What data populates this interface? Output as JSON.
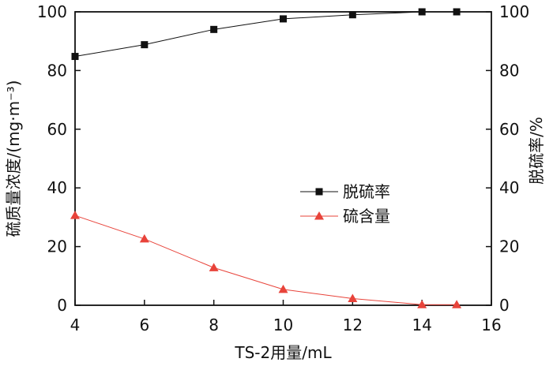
{
  "chart_data": {
    "type": "line",
    "xlabel": "TS-2用量/mL",
    "ylabel_left": "硫质量浓度/(mg·m⁻³)",
    "ylabel_right": "脱硫率/%",
    "xlim": [
      4,
      16
    ],
    "ylim_left": [
      0,
      100
    ],
    "ylim_right": [
      0,
      100
    ],
    "x_ticks": [
      "4",
      "6",
      "8",
      "10",
      "12",
      "14",
      "16"
    ],
    "y_ticks": [
      "0",
      "20",
      "40",
      "60",
      "80",
      "100"
    ],
    "grid": false,
    "legend_position": "center-right",
    "series": [
      {
        "name": "脱硫率",
        "axis": "right",
        "marker": "square",
        "color": "#111111",
        "x": [
          4,
          6,
          8,
          10,
          12,
          14,
          15
        ],
        "y": [
          84.8,
          88.8,
          94.0,
          97.6,
          99.0,
          100.0,
          100.0
        ]
      },
      {
        "name": "硫含量",
        "axis": "left",
        "marker": "triangle",
        "color": "#e8433a",
        "x": [
          4,
          6,
          8,
          10,
          12,
          14,
          15
        ],
        "y": [
          30.6,
          22.6,
          12.8,
          5.4,
          2.3,
          0.2,
          0.2
        ]
      }
    ]
  }
}
